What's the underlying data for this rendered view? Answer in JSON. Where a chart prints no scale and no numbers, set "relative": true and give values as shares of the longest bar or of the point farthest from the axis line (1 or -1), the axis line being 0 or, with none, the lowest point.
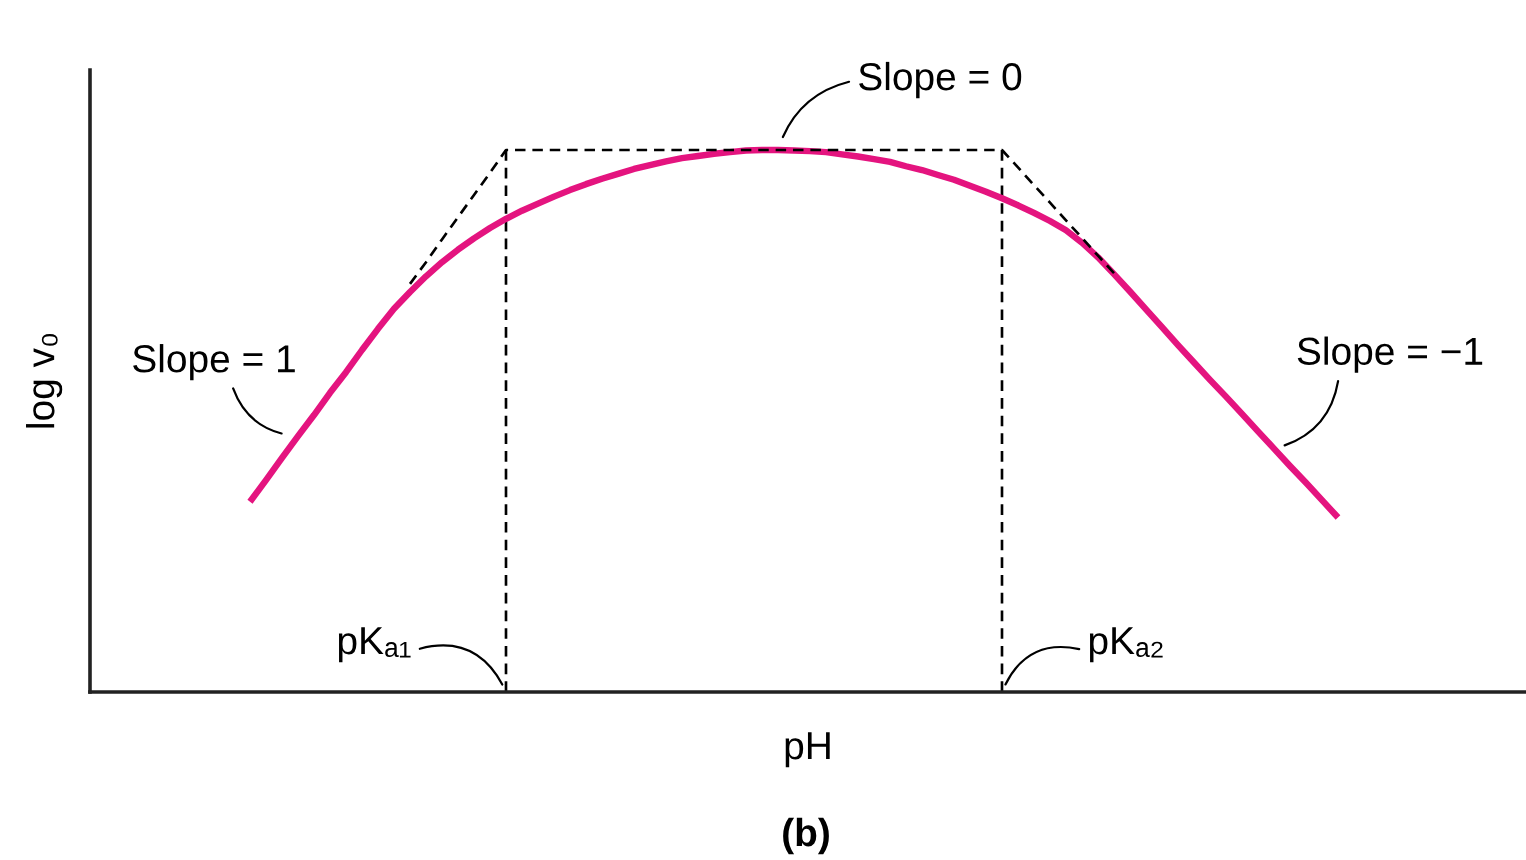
{
  "chart_data": {
    "type": "line",
    "xlabel": "pH",
    "ylabel": "log v₀",
    "relative": true,
    "tick_labels": false,
    "categories": [
      null,
      null,
      null,
      null,
      null,
      null,
      null,
      null,
      null,
      null,
      null,
      null,
      null,
      null,
      null,
      null,
      null,
      null,
      null,
      null,
      null,
      null,
      null,
      null,
      null,
      null,
      null,
      null,
      null,
      null,
      null,
      null,
      null,
      null,
      null,
      null,
      null,
      null,
      null,
      null,
      null,
      null,
      null,
      null,
      null,
      null,
      null,
      null,
      null,
      null,
      null,
      null,
      null,
      null,
      null,
      null,
      null,
      null,
      null,
      null,
      null,
      null,
      null,
      null,
      null,
      null,
      null,
      null,
      null
    ],
    "series": [
      {
        "color": "#e4147f",
        "values": [
          0.351,
          0.391,
          0.432,
          0.472,
          0.511,
          0.552,
          0.59,
          0.631,
          0.67,
          0.707,
          0.738,
          0.767,
          0.793,
          0.816,
          0.837,
          0.856,
          0.873,
          0.888,
          0.901,
          0.914,
          0.926,
          0.937,
          0.947,
          0.956,
          0.965,
          0.972,
          0.979,
          0.985,
          0.989,
          0.993,
          0.996,
          0.999,
          1.0,
          1.0,
          0.999,
          0.998,
          0.996,
          0.992,
          0.988,
          0.983,
          0.978,
          0.97,
          0.963,
          0.954,
          0.945,
          0.934,
          0.923,
          0.911,
          0.898,
          0.884,
          0.869,
          0.852,
          0.829,
          0.802,
          0.771,
          0.739,
          0.706,
          0.673,
          0.64,
          0.608,
          0.576,
          0.545,
          0.513,
          0.481,
          0.449,
          0.417,
          0.386,
          0.354,
          0.322
        ]
      },
      {
        "color": "#000000",
        "line_style": "dashed",
        "values": [
          null,
          null,
          null,
          null,
          null,
          null,
          null,
          null,
          null,
          null,
          0.753,
          0.793,
          0.835,
          0.876,
          0.917,
          0.958,
          1.0,
          1.0,
          1.0,
          1.0,
          1.0,
          1.0,
          1.0,
          1.0,
          1.0,
          1.0,
          1.0,
          1.0,
          1.0,
          1.0,
          1.0,
          1.0,
          1.0,
          1.0,
          1.0,
          1.0,
          1.0,
          1.0,
          1.0,
          1.0,
          1.0,
          1.0,
          1.0,
          1.0,
          1.0,
          1.0,
          1.0,
          1.0,
          0.968,
          0.935,
          0.903,
          0.87,
          0.838,
          0.805,
          0.773,
          null,
          null,
          null,
          null,
          null,
          null,
          null,
          null,
          null,
          null,
          null,
          null,
          null,
          null
        ]
      }
    ],
    "annotations": [
      "Slope = 1",
      "Slope = 0",
      "Slope = −1",
      "pKₐ₁",
      "pKₐ₂",
      "(b)"
    ]
  }
}
